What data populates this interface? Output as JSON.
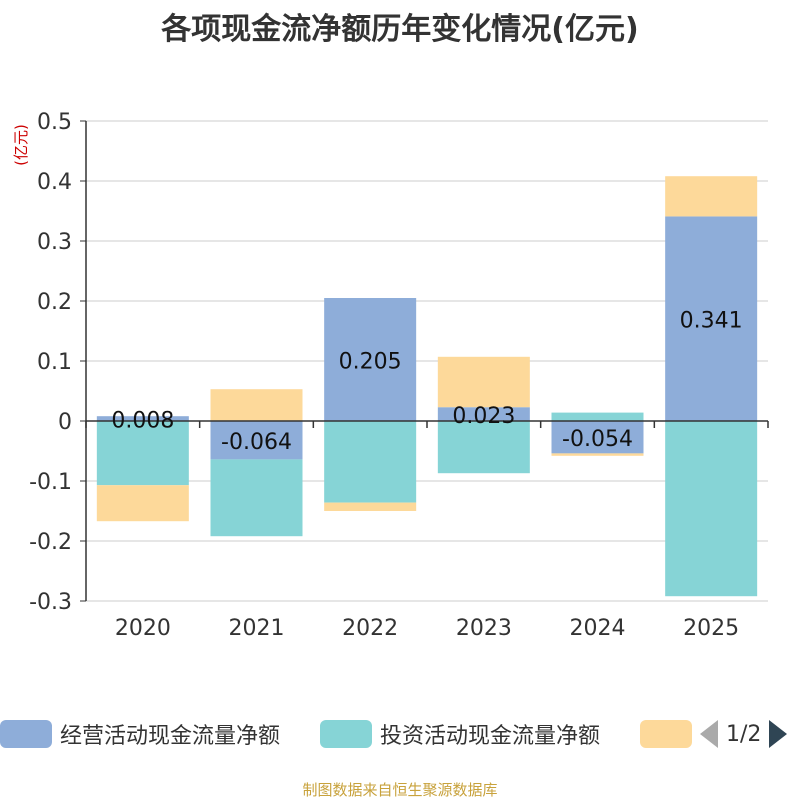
{
  "chart_data": {
    "type": "bar",
    "stacked": true,
    "title": "各项现金流净额历年变化情况(亿元)",
    "ylabel": "(亿元)",
    "ylim": [
      -0.3,
      0.5
    ],
    "yticks": [
      "0.5",
      "0.4",
      "0.3",
      "0.2",
      "0.1",
      "0",
      "-0.1",
      "-0.2",
      "-0.3"
    ],
    "ytick_values": [
      0.5,
      0.4,
      0.3,
      0.2,
      0.1,
      0,
      -0.1,
      -0.2,
      -0.3
    ],
    "categories": [
      "2020",
      "2021",
      "2022",
      "2023",
      "2024",
      "2025"
    ],
    "series": [
      {
        "name": "经营活动现金流量净额",
        "color": "#8eadd9",
        "values": [
          0.008,
          -0.064,
          0.205,
          0.023,
          -0.054,
          0.341
        ],
        "labels": [
          "0.008",
          "-0.064",
          "0.205",
          "0.023",
          "-0.054",
          "0.341"
        ]
      },
      {
        "name": "投资活动现金流量净额",
        "color": "#86d4d6",
        "values": [
          -0.107,
          -0.128,
          -0.136,
          -0.087,
          0.014,
          -0.292
        ]
      },
      {
        "name": "",
        "color": "#fdd99a",
        "values": [
          -0.06,
          0.053,
          -0.014,
          0.084,
          -0.004,
          0.067
        ]
      }
    ]
  },
  "legend": {
    "items": [
      {
        "label": "经营活动现金流量净额",
        "color": "#8eadd9"
      },
      {
        "label": "投资活动现金流量净额",
        "color": "#86d4d6"
      },
      {
        "label": "",
        "color": "#fdd99a"
      }
    ],
    "pager": "1/2"
  },
  "source": "制图数据来自恒生聚源数据库"
}
